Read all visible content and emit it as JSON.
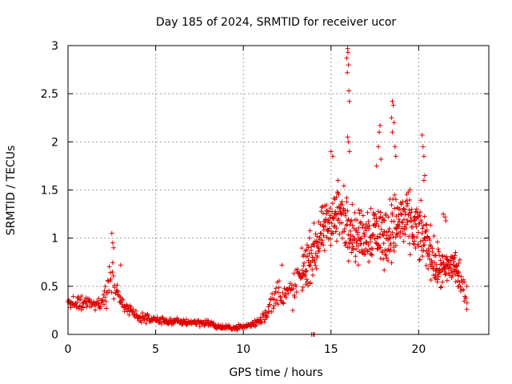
{
  "chart_data": {
    "type": "scatter",
    "title": "Day 185 of 2024, SRMTID for receiver ucor",
    "xlabel": "GPS time / hours",
    "ylabel": "SRMTID / TECUs",
    "xlim": [
      0,
      24
    ],
    "ylim": [
      0,
      3
    ],
    "xticks": [
      0,
      5,
      10,
      15,
      20
    ],
    "xtick_labels": [
      "0",
      "5",
      "10",
      "15",
      "20"
    ],
    "yticks": [
      0,
      0.5,
      1,
      1.5,
      2,
      2.5,
      3
    ],
    "ytick_labels": [
      "0",
      "0.5",
      "1",
      "1.5",
      "2",
      "2.5",
      "3"
    ],
    "grid": true,
    "marker": "plus",
    "color": "#e00000",
    "series": [
      {
        "name": "SRMTID",
        "envelope_x": [
          0,
          0.5,
          1,
          1.5,
          2,
          2.3,
          2.5,
          2.8,
          3,
          3.5,
          4,
          5,
          6,
          7,
          8,
          8.5,
          9,
          9.5,
          10,
          10.5,
          11,
          11.5,
          12,
          12.5,
          13,
          13.5,
          14,
          14.5,
          15,
          15.5,
          16,
          16.5,
          17,
          17.5,
          18,
          18.5,
          19,
          19.5,
          20,
          20.5,
          21,
          21.5,
          22,
          22.5,
          22.8
        ],
        "envelope_y": [
          0.33,
          0.32,
          0.33,
          0.32,
          0.33,
          0.5,
          0.6,
          0.45,
          0.35,
          0.25,
          0.18,
          0.15,
          0.13,
          0.13,
          0.12,
          0.08,
          0.07,
          0.07,
          0.08,
          0.1,
          0.15,
          0.28,
          0.45,
          0.4,
          0.5,
          0.7,
          0.85,
          1.05,
          1.2,
          1.25,
          1.15,
          1.0,
          1.05,
          1.1,
          1.0,
          1.1,
          1.2,
          1.15,
          1.05,
          0.95,
          0.7,
          0.65,
          0.75,
          0.5,
          0.35
        ],
        "spread": [
          0.1,
          0.1,
          0.1,
          0.1,
          0.12,
          0.25,
          0.25,
          0.15,
          0.1,
          0.07,
          0.06,
          0.05,
          0.05,
          0.05,
          0.05,
          0.04,
          0.03,
          0.03,
          0.04,
          0.05,
          0.07,
          0.15,
          0.2,
          0.2,
          0.3,
          0.3,
          0.35,
          0.35,
          0.35,
          0.45,
          0.4,
          0.35,
          0.4,
          0.45,
          0.4,
          0.45,
          0.45,
          0.4,
          0.4,
          0.35,
          0.3,
          0.25,
          0.3,
          0.2,
          0.12
        ],
        "spikes": [
          [
            2.5,
            1.05
          ],
          [
            2.55,
            0.95
          ],
          [
            2.6,
            0.9
          ],
          [
            3.0,
            0.72
          ],
          [
            12.2,
            0.72
          ],
          [
            14.0,
            0.0
          ],
          [
            13.9,
            0.0
          ],
          [
            14.05,
            0.0
          ],
          [
            15.0,
            1.9
          ],
          [
            15.1,
            1.85
          ],
          [
            15.4,
            1.6
          ],
          [
            15.95,
            2.97
          ],
          [
            15.97,
            2.93
          ],
          [
            15.9,
            2.87
          ],
          [
            16.0,
            2.8
          ],
          [
            15.93,
            2.72
          ],
          [
            16.02,
            2.53
          ],
          [
            16.05,
            2.42
          ],
          [
            15.95,
            2.05
          ],
          [
            16.0,
            2.0
          ],
          [
            16.05,
            1.9
          ],
          [
            17.8,
            2.17
          ],
          [
            17.75,
            2.1
          ],
          [
            17.7,
            1.95
          ],
          [
            17.85,
            1.82
          ],
          [
            17.6,
            1.75
          ],
          [
            18.5,
            2.42
          ],
          [
            18.55,
            2.38
          ],
          [
            18.45,
            2.25
          ],
          [
            18.6,
            2.2
          ],
          [
            18.5,
            2.1
          ],
          [
            18.65,
            1.95
          ],
          [
            18.7,
            1.85
          ],
          [
            20.2,
            2.07
          ],
          [
            20.25,
            1.95
          ],
          [
            20.3,
            1.85
          ],
          [
            20.35,
            1.65
          ],
          [
            20.3,
            1.6
          ],
          [
            21.4,
            1.25
          ],
          [
            21.5,
            1.22
          ],
          [
            21.55,
            1.18
          ],
          [
            22.3,
            0.5
          ],
          [
            22.4,
            0.45
          ],
          [
            22.75,
            0.5
          ]
        ]
      }
    ]
  }
}
